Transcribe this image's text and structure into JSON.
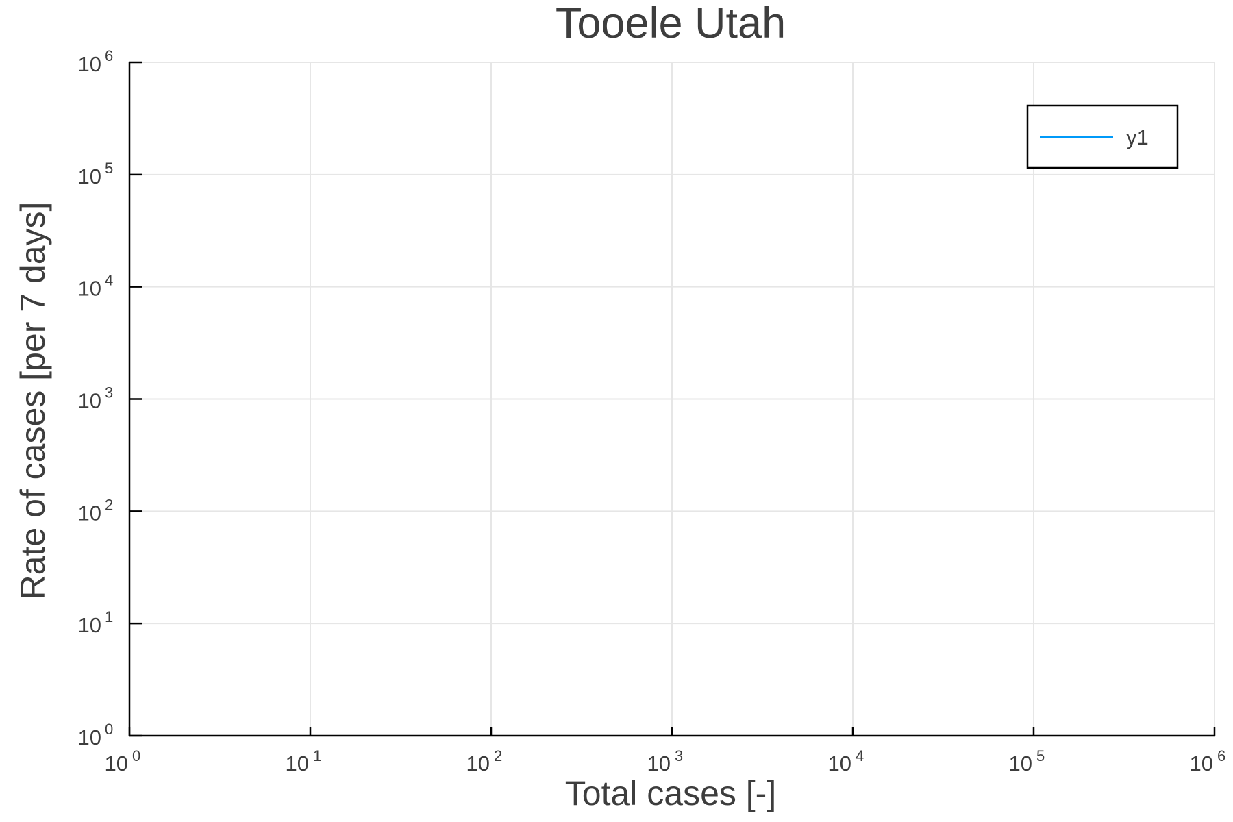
{
  "chart_data": {
    "type": "line",
    "title": "Tooele Utah",
    "xlabel": "Total cases [-]",
    "ylabel": "Rate of cases [per 7 days]",
    "xscale": "log",
    "yscale": "log",
    "xlim": [
      1,
      1000000
    ],
    "ylim": [
      1,
      1000000
    ],
    "x_ticks": [
      {
        "base": "10",
        "exp": "0",
        "value": 1
      },
      {
        "base": "10",
        "exp": "1",
        "value": 10
      },
      {
        "base": "10",
        "exp": "2",
        "value": 100
      },
      {
        "base": "10",
        "exp": "3",
        "value": 1000
      },
      {
        "base": "10",
        "exp": "4",
        "value": 10000
      },
      {
        "base": "10",
        "exp": "5",
        "value": 100000
      },
      {
        "base": "10",
        "exp": "6",
        "value": 1000000
      }
    ],
    "y_ticks": [
      {
        "base": "10",
        "exp": "0",
        "value": 1
      },
      {
        "base": "10",
        "exp": "1",
        "value": 10
      },
      {
        "base": "10",
        "exp": "2",
        "value": 100
      },
      {
        "base": "10",
        "exp": "3",
        "value": 1000
      },
      {
        "base": "10",
        "exp": "4",
        "value": 10000
      },
      {
        "base": "10",
        "exp": "5",
        "value": 100000
      },
      {
        "base": "10",
        "exp": "6",
        "value": 1000000
      }
    ],
    "grid": true,
    "legend_position": "top-right",
    "series": [
      {
        "name": "y1",
        "color": "#009af9",
        "x": [],
        "y": []
      }
    ]
  }
}
